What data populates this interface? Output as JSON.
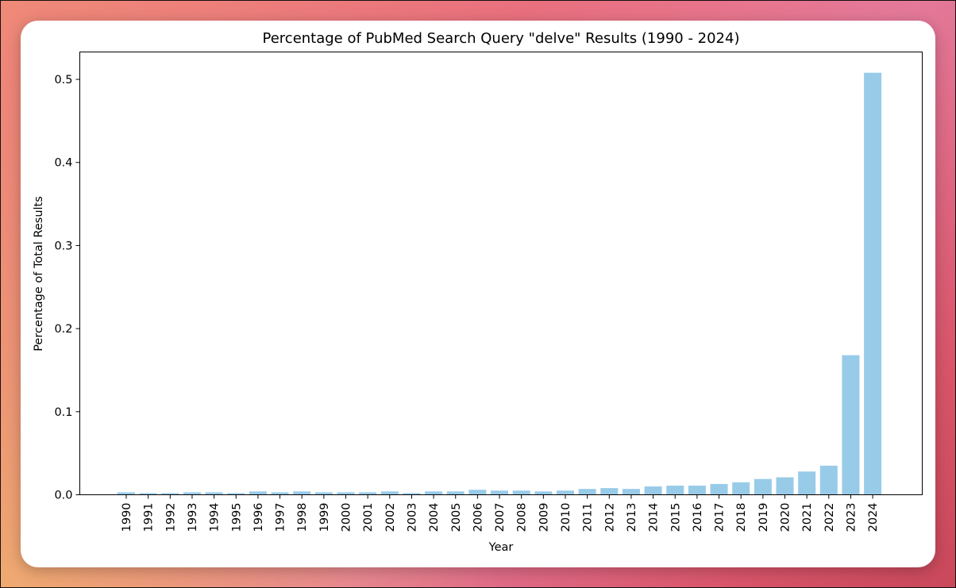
{
  "chart_data": {
    "type": "bar",
    "title": "Percentage of PubMed Search Query \"delve\" Results (1990 - 2024)",
    "xlabel": "Year",
    "ylabel": "Percentage of Total Results",
    "categories": [
      "1990",
      "1991",
      "1992",
      "1993",
      "1994",
      "1995",
      "1996",
      "1997",
      "1998",
      "1999",
      "2000",
      "2001",
      "2002",
      "2003",
      "2004",
      "2005",
      "2006",
      "2007",
      "2008",
      "2009",
      "2010",
      "2011",
      "2012",
      "2013",
      "2014",
      "2015",
      "2016",
      "2017",
      "2018",
      "2019",
      "2020",
      "2021",
      "2022",
      "2023",
      "2024"
    ],
    "values": [
      0.003,
      0.002,
      0.002,
      0.003,
      0.003,
      0.002,
      0.004,
      0.003,
      0.004,
      0.003,
      0.003,
      0.003,
      0.004,
      0.002,
      0.004,
      0.004,
      0.006,
      0.005,
      0.005,
      0.004,
      0.005,
      0.007,
      0.008,
      0.007,
      0.01,
      0.011,
      0.011,
      0.013,
      0.015,
      0.019,
      0.021,
      0.028,
      0.035,
      0.168,
      0.508
    ],
    "ylim": [
      0,
      0.533
    ],
    "yticks": [
      "0.0",
      "0.1",
      "0.2",
      "0.3",
      "0.4",
      "0.5"
    ],
    "bar_color": "#98cbe8",
    "grid": false
  }
}
